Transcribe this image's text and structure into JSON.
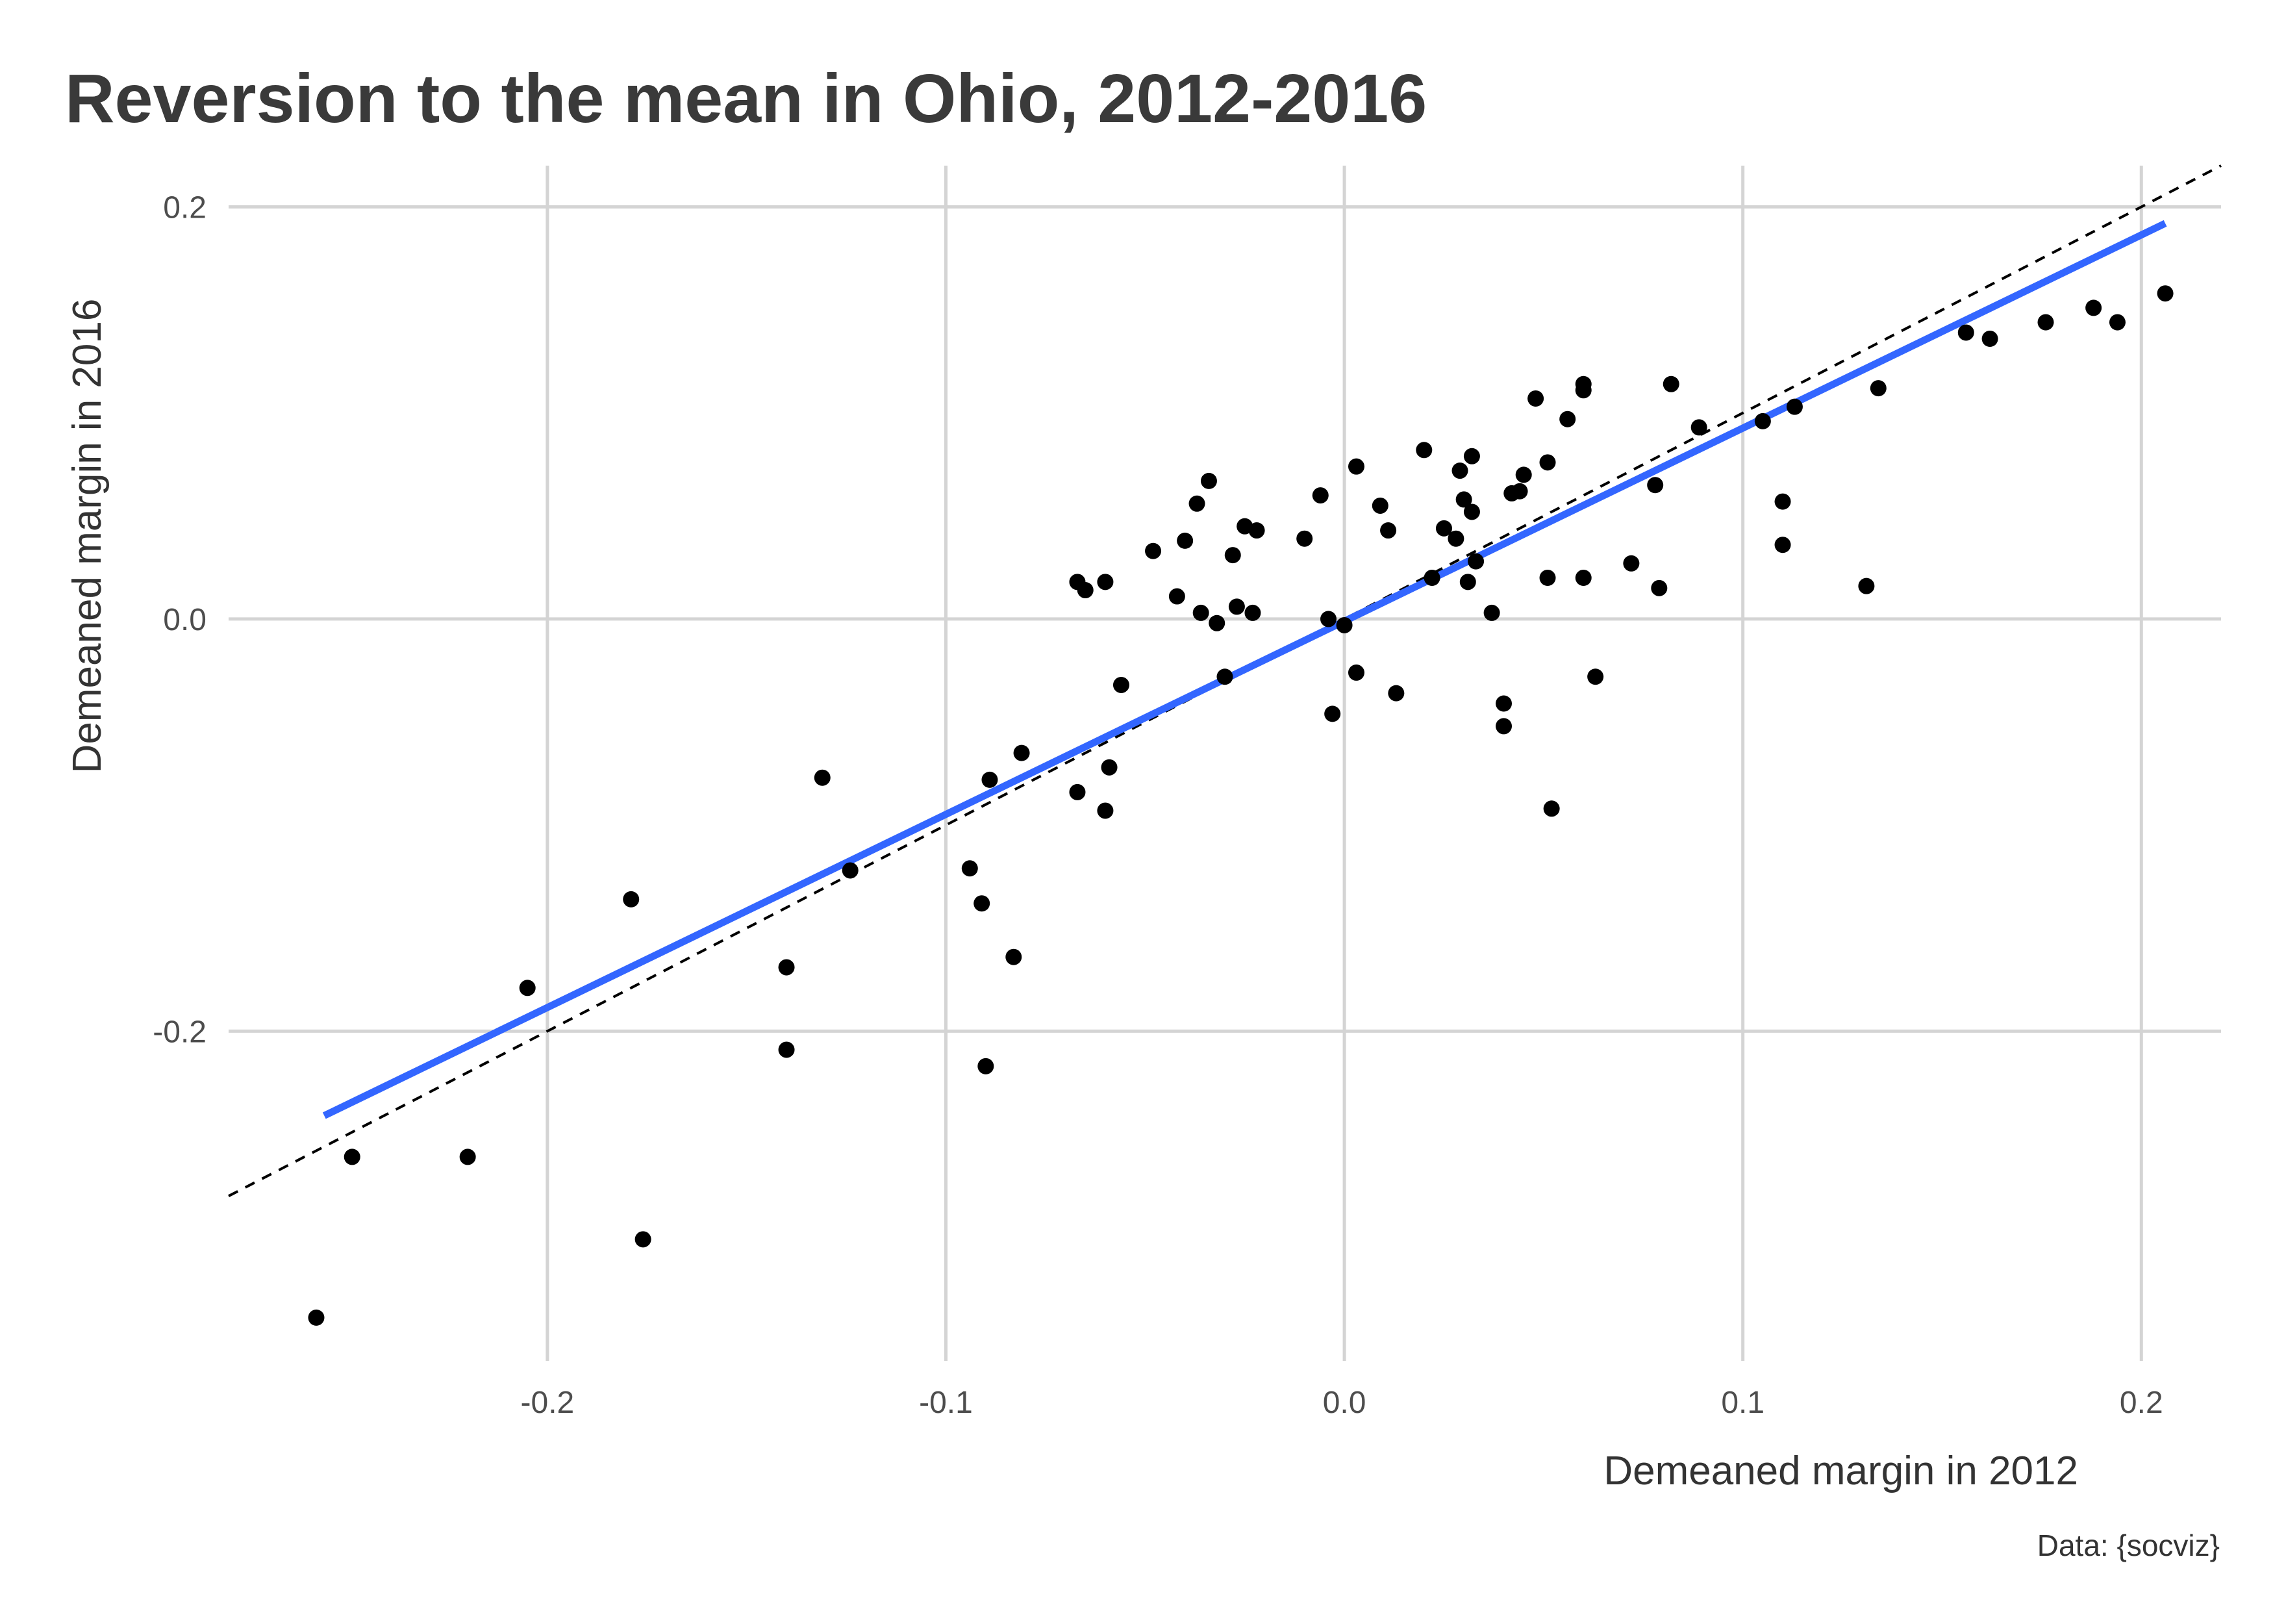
{
  "chart_data": {
    "type": "scatter",
    "title": "Reversion to the mean in Ohio, 2012-2016",
    "xlabel": "Demeaned margin in 2012",
    "ylabel": "Demeaned margin in 2016",
    "caption": "Data: {socviz}",
    "xlim": [
      -0.28,
      0.22
    ],
    "ylim": [
      -0.36,
      0.22
    ],
    "x_ticks": [
      -0.2,
      -0.1,
      0.0,
      0.1,
      0.2
    ],
    "y_ticks": [
      -0.2,
      0.0,
      0.2
    ],
    "x_tick_labels": [
      "-0.2",
      "-0.1",
      "0.0",
      "0.1",
      "0.2"
    ],
    "y_tick_labels": [
      "-0.2",
      "0.0",
      "0.2"
    ],
    "grid": true,
    "legend": "none",
    "colors": {
      "points": "#000000",
      "fit_line": "#3366ff",
      "reference_line": "#000000",
      "grid": "#d4d4d4"
    },
    "fit_line": {
      "x": [
        -0.256,
        0.206
      ],
      "y": [
        -0.241,
        0.192
      ]
    },
    "reference_line": {
      "x": [
        -0.28,
        0.22
      ],
      "y": [
        -0.28,
        0.22
      ],
      "style": "dashed"
    },
    "points": [
      [
        -0.258,
        -0.339
      ],
      [
        -0.249,
        -0.261
      ],
      [
        -0.22,
        -0.261
      ],
      [
        -0.205,
        -0.179
      ],
      [
        -0.179,
        -0.136
      ],
      [
        -0.176,
        -0.301
      ],
      [
        -0.14,
        -0.169
      ],
      [
        -0.14,
        -0.209
      ],
      [
        -0.131,
        -0.077
      ],
      [
        -0.124,
        -0.122
      ],
      [
        -0.094,
        -0.121
      ],
      [
        -0.091,
        -0.138
      ],
      [
        -0.09,
        -0.217
      ],
      [
        -0.089,
        -0.078
      ],
      [
        -0.083,
        -0.164
      ],
      [
        -0.081,
        -0.065
      ],
      [
        -0.067,
        -0.084
      ],
      [
        -0.067,
        0.018
      ],
      [
        -0.065,
        0.014
      ],
      [
        -0.06,
        0.018
      ],
      [
        -0.06,
        -0.093
      ],
      [
        -0.059,
        -0.072
      ],
      [
        -0.056,
        -0.032
      ],
      [
        -0.048,
        0.033
      ],
      [
        -0.042,
        0.011
      ],
      [
        -0.04,
        0.038
      ],
      [
        -0.037,
        0.056
      ],
      [
        -0.036,
        0.003
      ],
      [
        -0.034,
        0.067
      ],
      [
        -0.032,
        -0.002
      ],
      [
        -0.03,
        -0.028
      ],
      [
        -0.028,
        0.031
      ],
      [
        -0.027,
        0.006
      ],
      [
        -0.025,
        0.045
      ],
      [
        -0.023,
        0.003
      ],
      [
        -0.022,
        0.043
      ],
      [
        -0.01,
        0.039
      ],
      [
        -0.006,
        0.06
      ],
      [
        -0.004,
        0.0
      ],
      [
        -0.003,
        -0.046
      ],
      [
        0.0,
        -0.003
      ],
      [
        0.003,
        0.074
      ],
      [
        0.003,
        -0.026
      ],
      [
        0.009,
        0.055
      ],
      [
        0.011,
        0.043
      ],
      [
        0.013,
        -0.036
      ],
      [
        0.02,
        0.082
      ],
      [
        0.022,
        0.02
      ],
      [
        0.025,
        0.044
      ],
      [
        0.028,
        0.039
      ],
      [
        0.029,
        0.072
      ],
      [
        0.03,
        0.058
      ],
      [
        0.031,
        0.018
      ],
      [
        0.032,
        0.052
      ],
      [
        0.032,
        0.079
      ],
      [
        0.033,
        0.028
      ],
      [
        0.037,
        0.003
      ],
      [
        0.04,
        -0.041
      ],
      [
        0.04,
        -0.052
      ],
      [
        0.042,
        0.061
      ],
      [
        0.044,
        0.062
      ],
      [
        0.045,
        0.07
      ],
      [
        0.048,
        0.107
      ],
      [
        0.051,
        0.076
      ],
      [
        0.051,
        0.02
      ],
      [
        0.052,
        -0.092
      ],
      [
        0.056,
        0.097
      ],
      [
        0.06,
        0.114
      ],
      [
        0.06,
        0.111
      ],
      [
        0.06,
        0.02
      ],
      [
        0.063,
        -0.028
      ],
      [
        0.072,
        0.027
      ],
      [
        0.078,
        0.065
      ],
      [
        0.079,
        0.015
      ],
      [
        0.082,
        0.114
      ],
      [
        0.089,
        0.093
      ],
      [
        0.105,
        0.096
      ],
      [
        0.11,
        0.057
      ],
      [
        0.11,
        0.036
      ],
      [
        0.113,
        0.103
      ],
      [
        0.131,
        0.016
      ],
      [
        0.134,
        0.112
      ],
      [
        0.156,
        0.139
      ],
      [
        0.162,
        0.136
      ],
      [
        0.176,
        0.144
      ],
      [
        0.188,
        0.151
      ],
      [
        0.194,
        0.144
      ],
      [
        0.206,
        0.158
      ]
    ]
  }
}
